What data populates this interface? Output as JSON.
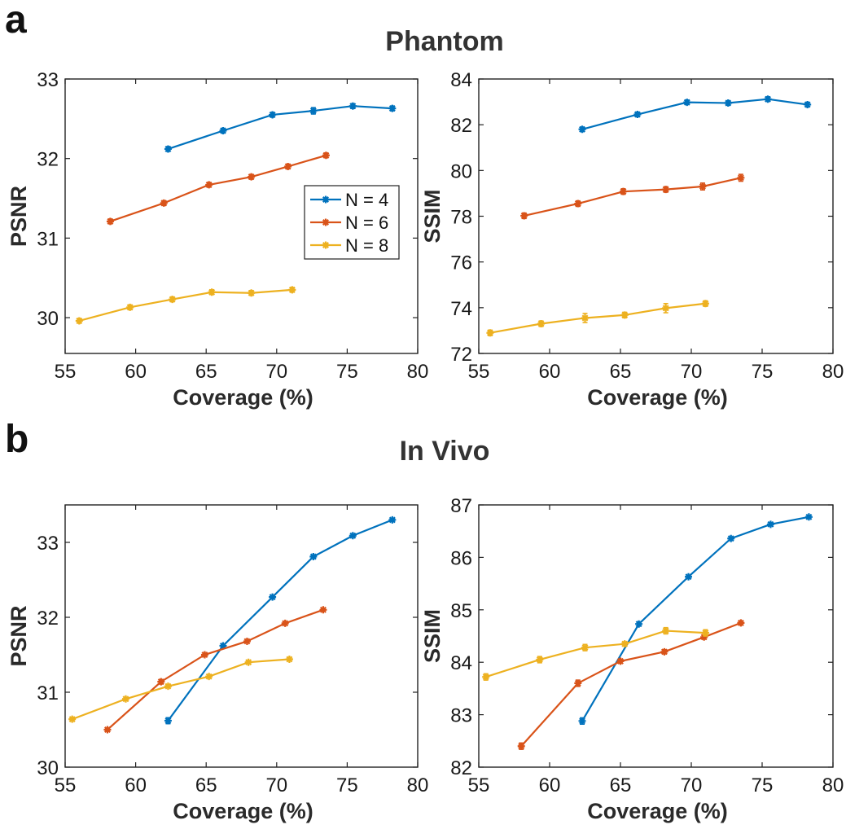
{
  "labels": {
    "panel_a": "a",
    "panel_b": "b",
    "title_a": "Phantom",
    "title_b": "In Vivo"
  },
  "legend": {
    "entries": [
      "N = 4",
      "N = 6",
      "N = 8"
    ],
    "colors": [
      "#0072BD",
      "#D95319",
      "#EDB120"
    ]
  },
  "chart_data": [
    {
      "id": "phantom-psnr",
      "type": "line",
      "xlabel": "Coverage (%)",
      "ylabel": "PSNR",
      "xlim": [
        55,
        80
      ],
      "ylim": [
        29.55,
        33
      ],
      "xticks": [
        55,
        60,
        65,
        70,
        75,
        80
      ],
      "yticks": [
        30,
        31,
        32,
        33
      ],
      "legend": true,
      "series": [
        {
          "name": "N = 4",
          "color": "#0072BD",
          "x": [
            62.3,
            66.2,
            69.7,
            72.6,
            75.4,
            78.2
          ],
          "y": [
            32.12,
            32.35,
            32.55,
            32.6,
            32.66,
            32.63
          ],
          "err": [
            0.03,
            0.03,
            0.03,
            0.04,
            0.03,
            0.03
          ]
        },
        {
          "name": "N = 6",
          "color": "#D95319",
          "x": [
            58.2,
            62.0,
            65.2,
            68.2,
            70.8,
            73.5
          ],
          "y": [
            31.21,
            31.44,
            31.67,
            31.77,
            31.9,
            32.04
          ],
          "err": [
            0.03,
            0.03,
            0.03,
            0.03,
            0.03,
            0.03
          ]
        },
        {
          "name": "N = 8",
          "color": "#EDB120",
          "x": [
            56.0,
            59.6,
            62.6,
            65.4,
            68.2,
            71.1
          ],
          "y": [
            29.96,
            30.13,
            30.23,
            30.32,
            30.31,
            30.35
          ],
          "err": [
            0.03,
            0.03,
            0.03,
            0.03,
            0.03,
            0.03
          ]
        }
      ]
    },
    {
      "id": "phantom-ssim",
      "type": "line",
      "xlabel": "Coverage (%)",
      "ylabel": "SSIM",
      "xlim": [
        55,
        80
      ],
      "ylim": [
        72,
        84
      ],
      "xticks": [
        55,
        60,
        65,
        70,
        75,
        80
      ],
      "yticks": [
        72,
        74,
        76,
        78,
        80,
        82,
        84
      ],
      "legend": false,
      "series": [
        {
          "name": "N = 4",
          "color": "#0072BD",
          "x": [
            62.3,
            66.2,
            69.7,
            72.6,
            75.4,
            78.2
          ],
          "y": [
            81.8,
            82.45,
            82.98,
            82.95,
            83.12,
            82.88
          ],
          "err": [
            0.1,
            0.1,
            0.1,
            0.1,
            0.1,
            0.1
          ]
        },
        {
          "name": "N = 6",
          "color": "#D95319",
          "x": [
            58.2,
            62.0,
            65.2,
            68.2,
            70.8,
            73.5
          ],
          "y": [
            78.02,
            78.55,
            79.08,
            79.17,
            79.3,
            79.68
          ],
          "err": [
            0.12,
            0.12,
            0.12,
            0.12,
            0.15,
            0.15
          ]
        },
        {
          "name": "N = 8",
          "color": "#EDB120",
          "x": [
            55.8,
            59.4,
            62.5,
            65.3,
            68.2,
            71.0
          ],
          "y": [
            72.9,
            73.3,
            73.55,
            73.68,
            73.98,
            74.18
          ],
          "err": [
            0.12,
            0.12,
            0.2,
            0.12,
            0.2,
            0.12
          ]
        }
      ]
    },
    {
      "id": "invivo-psnr",
      "type": "line",
      "xlabel": "Coverage (%)",
      "ylabel": "PSNR",
      "xlim": [
        55,
        80
      ],
      "ylim": [
        30,
        33.5
      ],
      "xticks": [
        55,
        60,
        65,
        70,
        75,
        80
      ],
      "yticks": [
        30,
        31,
        32,
        33
      ],
      "legend": false,
      "series": [
        {
          "name": "N = 4",
          "color": "#0072BD",
          "x": [
            62.3,
            66.2,
            69.7,
            72.6,
            75.4,
            78.2
          ],
          "y": [
            30.62,
            31.62,
            32.27,
            32.81,
            33.09,
            33.3
          ],
          "err": [
            0.04,
            0.02,
            0.02,
            0.02,
            0.02,
            0.02
          ]
        },
        {
          "name": "N = 6",
          "color": "#D95319",
          "x": [
            58.0,
            61.8,
            64.9,
            67.9,
            70.6,
            73.3
          ],
          "y": [
            30.5,
            31.14,
            31.5,
            31.68,
            31.92,
            32.1
          ],
          "err": [
            0.02,
            0.03,
            0.02,
            0.02,
            0.02,
            0.02
          ]
        },
        {
          "name": "N = 8",
          "color": "#EDB120",
          "x": [
            55.5,
            59.3,
            62.3,
            65.2,
            68.0,
            70.9
          ],
          "y": [
            30.64,
            30.91,
            31.08,
            31.21,
            31.4,
            31.44
          ],
          "err": [
            0.02,
            0.02,
            0.02,
            0.02,
            0.02,
            0.02
          ]
        }
      ]
    },
    {
      "id": "invivo-ssim",
      "type": "line",
      "xlabel": "Coverage (%)",
      "ylabel": "SSIM",
      "xlim": [
        55,
        80
      ],
      "ylim": [
        82,
        87
      ],
      "xticks": [
        55,
        60,
        65,
        70,
        75,
        80
      ],
      "yticks": [
        82,
        83,
        84,
        85,
        86,
        87
      ],
      "legend": false,
      "series": [
        {
          "name": "N = 4",
          "color": "#0072BD",
          "x": [
            62.3,
            66.3,
            69.8,
            72.8,
            75.6,
            78.3
          ],
          "y": [
            82.88,
            84.73,
            85.63,
            86.36,
            86.63,
            86.77
          ],
          "err": [
            0.06,
            0.04,
            0.03,
            0.03,
            0.03,
            0.03
          ]
        },
        {
          "name": "N = 6",
          "color": "#D95319",
          "x": [
            58.0,
            62.0,
            65.0,
            68.1,
            70.9,
            73.5
          ],
          "y": [
            82.4,
            83.6,
            84.02,
            84.2,
            84.48,
            84.75
          ],
          "err": [
            0.06,
            0.06,
            0.04,
            0.04,
            0.04,
            0.04
          ]
        },
        {
          "name": "N = 8",
          "color": "#EDB120",
          "x": [
            55.5,
            59.3,
            62.5,
            65.3,
            68.2,
            71.0
          ],
          "y": [
            83.72,
            84.05,
            84.28,
            84.35,
            84.6,
            84.56
          ],
          "err": [
            0.06,
            0.06,
            0.06,
            0.04,
            0.06,
            0.06
          ]
        }
      ]
    }
  ]
}
